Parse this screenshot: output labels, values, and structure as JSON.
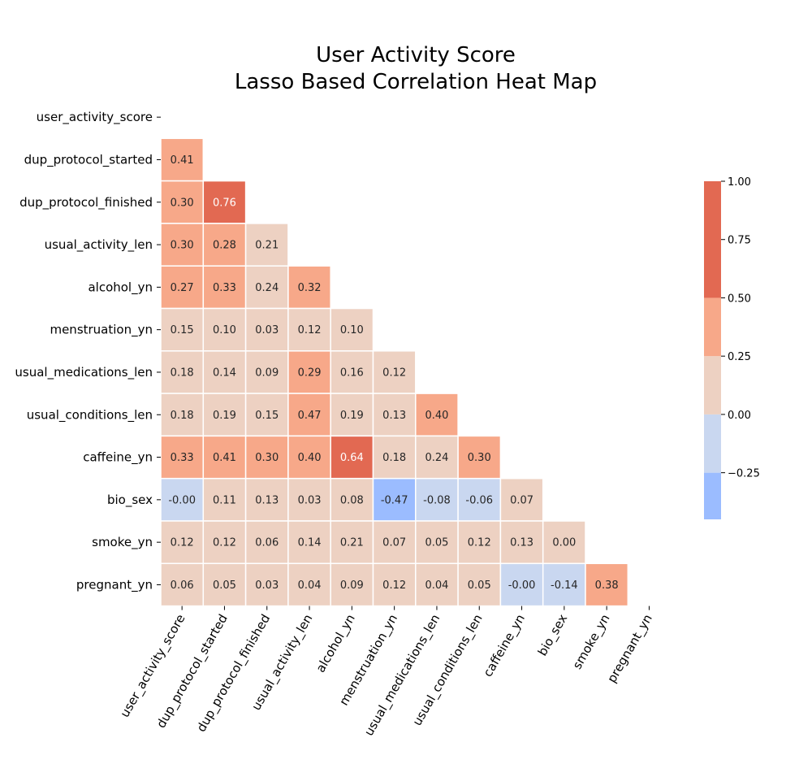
{
  "chart_data": {
    "type": "heatmap",
    "title": [
      "User Activity Score",
      "Lasso Based Correlation Heat Map"
    ],
    "variables": [
      "user_activity_score",
      "dup_protocol_started",
      "dup_protocol_finished",
      "usual_activity_len",
      "alcohol_yn",
      "menstruation_yn",
      "usual_medications_len",
      "usual_conditions_len",
      "caffeine_yn",
      "bio_sex",
      "smoke_yn",
      "pregnant_yn"
    ],
    "lower_triangle_values": [
      [],
      [
        "0.41"
      ],
      [
        "0.30",
        "0.76"
      ],
      [
        "0.30",
        "0.28",
        "0.21"
      ],
      [
        "0.27",
        "0.33",
        "0.24",
        "0.32"
      ],
      [
        "0.15",
        "0.10",
        "0.03",
        "0.12",
        "0.10"
      ],
      [
        "0.18",
        "0.14",
        "0.09",
        "0.29",
        "0.16",
        "0.12"
      ],
      [
        "0.18",
        "0.19",
        "0.15",
        "0.47",
        "0.19",
        "0.13",
        "0.40"
      ],
      [
        "0.33",
        "0.41",
        "0.30",
        "0.40",
        "0.64",
        "0.18",
        "0.24",
        "0.30"
      ],
      [
        "-0.00",
        "0.11",
        "0.13",
        "0.03",
        "0.08",
        "-0.47",
        "-0.08",
        "-0.06",
        "0.07"
      ],
      [
        "0.12",
        "0.12",
        "0.06",
        "0.14",
        "0.21",
        "0.07",
        "0.05",
        "0.12",
        "0.13",
        "0.00"
      ],
      [
        "0.06",
        "0.05",
        "0.03",
        "0.04",
        "0.09",
        "0.12",
        "0.04",
        "0.05",
        "-0.00",
        "-0.14",
        "0.38"
      ]
    ],
    "masked": "upper triangle and diagonal",
    "colorbar": {
      "range": [
        -0.45,
        1.0
      ],
      "ticks": [
        "1.00",
        "0.75",
        "0.50",
        "0.25",
        "0.00",
        "−0.25"
      ],
      "bins": [
        {
          "from": -0.45,
          "to": -0.25,
          "color": "#9bbcff"
        },
        {
          "from": -0.25,
          "to": 0.0,
          "color": "#c9d7f0"
        },
        {
          "from": 0.0,
          "to": 0.25,
          "color": "#edd1c2"
        },
        {
          "from": 0.25,
          "to": 0.5,
          "color": "#f7a889"
        },
        {
          "from": 0.5,
          "to": 0.75,
          "color": "#e26952"
        }
      ]
    },
    "cell_label_colors": {
      "dark": "#262626",
      "light": "#ffffff"
    }
  }
}
